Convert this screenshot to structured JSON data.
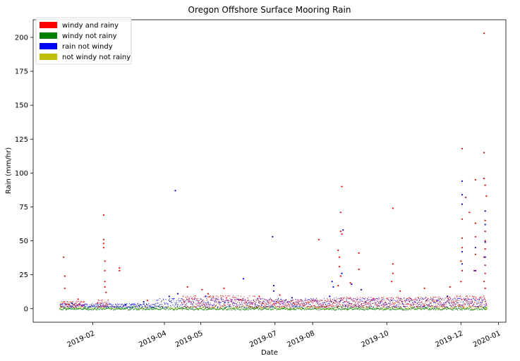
{
  "chart_data": {
    "type": "scatter",
    "title": "Oregon Offshore Surface Mooring Rain",
    "xlabel": "Date",
    "ylabel": "Rain (mm/hr)",
    "xlim": [
      "2018-12-14",
      "2020-01-07"
    ],
    "ylim": [
      -10,
      213
    ],
    "x_ticks": [
      "2019-02",
      "2019-04",
      "2019-05",
      "2019-07",
      "2019-08",
      "2019-10",
      "2019-12",
      "2020-01"
    ],
    "x_tick_dates": [
      "2019-02-01",
      "2019-04-01",
      "2019-05-01",
      "2019-07-01",
      "2019-08-01",
      "2019-10-01",
      "2019-12-01",
      "2020-01-01"
    ],
    "y_ticks": [
      0,
      25,
      50,
      75,
      100,
      125,
      150,
      175,
      200
    ],
    "grid": false,
    "legend_position": "top-left",
    "series": [
      {
        "name": "windy and rainy",
        "color": "#ff0000",
        "points": [
          [
            "2019-01-08",
            38
          ],
          [
            "2019-01-09",
            24
          ],
          [
            "2019-01-09",
            15
          ],
          [
            "2019-01-20",
            7
          ],
          [
            "2019-02-05",
            4
          ],
          [
            "2019-02-10",
            69
          ],
          [
            "2019-02-10",
            51
          ],
          [
            "2019-02-10",
            48
          ],
          [
            "2019-02-10",
            45
          ],
          [
            "2019-02-11",
            35
          ],
          [
            "2019-02-11",
            28
          ],
          [
            "2019-02-11",
            20
          ],
          [
            "2019-02-11",
            16
          ],
          [
            "2019-02-12",
            12
          ],
          [
            "2019-02-23",
            30
          ],
          [
            "2019-02-23",
            28
          ],
          [
            "2019-03-18",
            6
          ],
          [
            "2019-04-20",
            16
          ],
          [
            "2019-05-02",
            14
          ],
          [
            "2019-05-07",
            11
          ],
          [
            "2019-05-20",
            15
          ],
          [
            "2019-06-18",
            9
          ],
          [
            "2019-07-05",
            10
          ],
          [
            "2019-08-06",
            51
          ],
          [
            "2019-08-25",
            90
          ],
          [
            "2019-08-24",
            71
          ],
          [
            "2019-08-24",
            57
          ],
          [
            "2019-08-25",
            55
          ],
          [
            "2019-08-22",
            43
          ],
          [
            "2019-08-23",
            38
          ],
          [
            "2019-08-23",
            31
          ],
          [
            "2019-08-24",
            24
          ],
          [
            "2019-08-22",
            17
          ],
          [
            "2019-09-01",
            19
          ],
          [
            "2019-09-08",
            41
          ],
          [
            "2019-09-08",
            29
          ],
          [
            "2019-10-06",
            74
          ],
          [
            "2019-10-06",
            33
          ],
          [
            "2019-10-06",
            26
          ],
          [
            "2019-10-05",
            20
          ],
          [
            "2019-10-12",
            13
          ],
          [
            "2019-11-01",
            15
          ],
          [
            "2019-11-22",
            16
          ],
          [
            "2019-12-02",
            118
          ],
          [
            "2019-12-02",
            66
          ],
          [
            "2019-12-02",
            52
          ],
          [
            "2019-12-02",
            45
          ],
          [
            "2019-12-01",
            35
          ],
          [
            "2019-12-02",
            28
          ],
          [
            "2019-12-01",
            20
          ],
          [
            "2019-12-05",
            82
          ],
          [
            "2019-12-08",
            71
          ],
          [
            "2019-12-13",
            95
          ],
          [
            "2019-12-13",
            63
          ],
          [
            "2019-12-13",
            53
          ],
          [
            "2019-12-13",
            40
          ],
          [
            "2019-12-12",
            28
          ],
          [
            "2019-12-20",
            203
          ],
          [
            "2019-12-20",
            115
          ],
          [
            "2019-12-20",
            96
          ],
          [
            "2019-12-21",
            91
          ],
          [
            "2019-12-22",
            83
          ],
          [
            "2019-12-21",
            72
          ],
          [
            "2019-12-21",
            65
          ],
          [
            "2019-12-21",
            57
          ],
          [
            "2019-12-21",
            50
          ],
          [
            "2019-12-21",
            44
          ],
          [
            "2019-12-20",
            38
          ],
          [
            "2019-12-21",
            32
          ],
          [
            "2019-12-21",
            26
          ],
          [
            "2019-12-20",
            20
          ],
          [
            "2019-12-21",
            15
          ]
        ]
      },
      {
        "name": "windy not rainy",
        "color": "#008000",
        "points": [
          [
            "2019-01-05",
            0
          ],
          [
            "2019-12-22",
            0
          ]
        ]
      },
      {
        "name": "rain not windy",
        "color": "#0000ff",
        "points": [
          [
            "2019-01-15",
            4
          ],
          [
            "2019-02-28",
            3
          ],
          [
            "2019-03-15",
            5
          ],
          [
            "2019-04-10",
            87
          ],
          [
            "2019-04-05",
            9
          ],
          [
            "2019-04-12",
            11
          ],
          [
            "2019-05-05",
            9
          ],
          [
            "2019-06-05",
            22
          ],
          [
            "2019-06-29",
            53
          ],
          [
            "2019-06-30",
            17
          ],
          [
            "2019-06-30",
            13
          ],
          [
            "2019-07-15",
            8
          ],
          [
            "2019-08-15",
            9
          ],
          [
            "2019-08-17",
            20
          ],
          [
            "2019-08-18",
            16
          ],
          [
            "2019-08-26",
            58
          ],
          [
            "2019-08-25",
            26
          ],
          [
            "2019-09-02",
            18
          ],
          [
            "2019-09-10",
            14
          ],
          [
            "2019-11-20",
            9
          ],
          [
            "2019-12-02",
            94
          ],
          [
            "2019-12-02",
            84
          ],
          [
            "2019-12-02",
            77
          ],
          [
            "2019-12-02",
            42
          ],
          [
            "2019-12-02",
            33
          ],
          [
            "2019-12-13",
            45
          ],
          [
            "2019-12-13",
            28
          ],
          [
            "2019-12-21",
            72
          ],
          [
            "2019-12-21",
            62
          ],
          [
            "2019-12-21",
            49
          ],
          [
            "2019-12-21",
            38
          ]
        ]
      },
      {
        "name": "not windy not rainy",
        "color": "#bfbf00",
        "points": [
          [
            "2019-01-05",
            0
          ],
          [
            "2019-12-22",
            0
          ]
        ]
      }
    ]
  }
}
